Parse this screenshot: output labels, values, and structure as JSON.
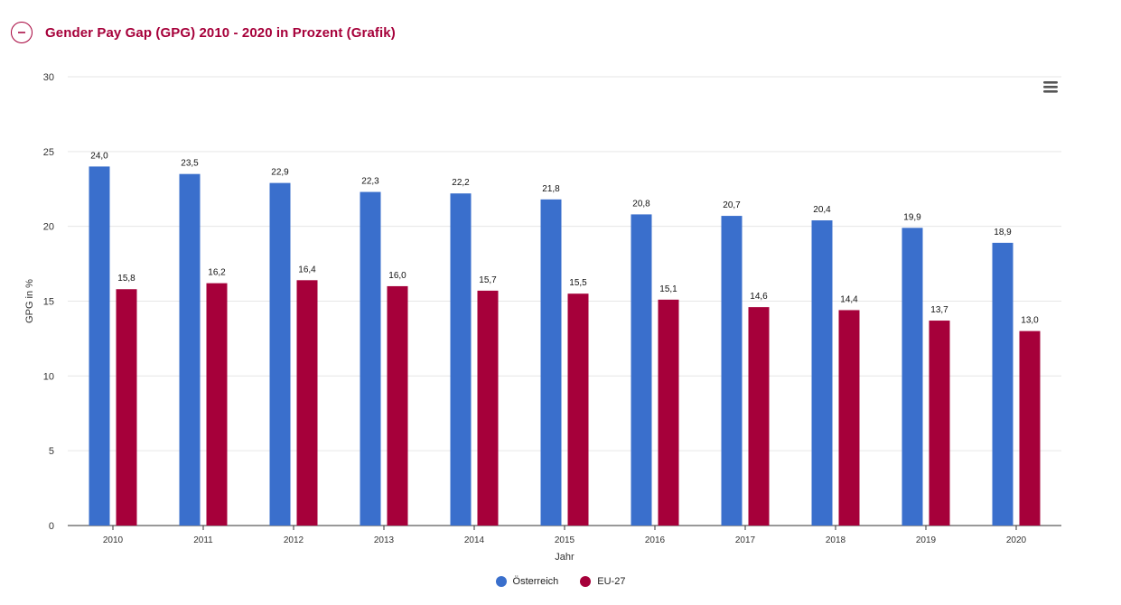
{
  "header": {
    "title": "Gender Pay Gap (GPG) 2010 - 2020 in Prozent (Grafik)",
    "collapse_icon": "minus-circle-icon"
  },
  "menu": {
    "icon": "hamburger-menu-icon"
  },
  "colors": {
    "accent": "#a6003a",
    "series_1": "#3a6fcc",
    "series_2": "#a6003a",
    "grid": "#e6e6e6",
    "axis": "#333333"
  },
  "chart_data": {
    "type": "bar",
    "title": "Gender Pay Gap (GPG) 2010 - 2020 in Prozent (Grafik)",
    "xlabel": "Jahr",
    "ylabel": "GPG in %",
    "ylim": [
      0,
      30
    ],
    "yticks": [
      0,
      5,
      10,
      15,
      20,
      25,
      30
    ],
    "grid": true,
    "legend": "bottom-center",
    "categories": [
      "2010",
      "2011",
      "2012",
      "2013",
      "2014",
      "2015",
      "2016",
      "2017",
      "2018",
      "2019",
      "2020"
    ],
    "series": [
      {
        "name": "Österreich",
        "values": [
          24.0,
          23.5,
          22.9,
          22.3,
          22.2,
          21.8,
          20.8,
          20.7,
          20.4,
          19.9,
          18.9
        ],
        "labels": [
          "24,0",
          "23,5",
          "22,9",
          "22,3",
          "22,2",
          "21,8",
          "20,8",
          "20,7",
          "20,4",
          "19,9",
          "18,9"
        ]
      },
      {
        "name": "EU-27",
        "values": [
          15.8,
          16.2,
          16.4,
          16.0,
          15.7,
          15.5,
          15.1,
          14.6,
          14.4,
          13.7,
          13.0
        ],
        "labels": [
          "15,8",
          "16,2",
          "16,4",
          "16,0",
          "15,7",
          "15,5",
          "15,1",
          "14,6",
          "14,4",
          "13,7",
          "13,0"
        ]
      }
    ]
  }
}
